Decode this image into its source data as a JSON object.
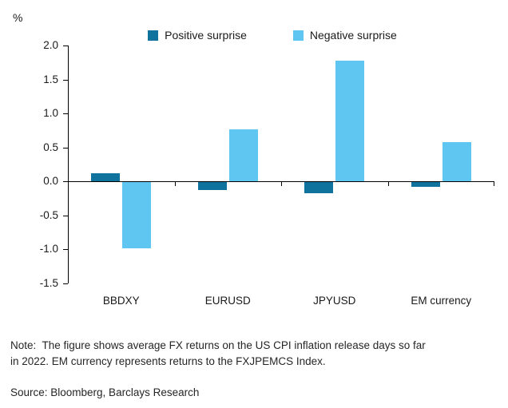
{
  "chart_data": {
    "type": "bar",
    "categories": [
      "BBDXY",
      "EURUSD",
      "JPYUSD",
      "EM currency"
    ],
    "series": [
      {
        "name": "Positive surprise",
        "color": "#10739E",
        "values": [
          0.12,
          -0.13,
          -0.17,
          -0.08
        ]
      },
      {
        "name": "Negative surprise",
        "color": "#5EC6F0",
        "values": [
          -0.98,
          0.77,
          1.78,
          0.58
        ]
      }
    ],
    "ylabel": "%",
    "ylim": [
      -1.5,
      2.0
    ],
    "ytick_step": 0.5,
    "yticks": [
      "2.0",
      "1.5",
      "1.0",
      "0.5",
      "0.0",
      "-0.5",
      "-1.0",
      "-1.5"
    ],
    "grid": false,
    "legend_position": "top"
  },
  "note": "Note:  The figure shows average FX returns on the US CPI inflation release days so far\nin 2022. EM currency represents returns to the FXJPEMCS Index.",
  "source": "Source: Bloomberg, Barclays Research"
}
